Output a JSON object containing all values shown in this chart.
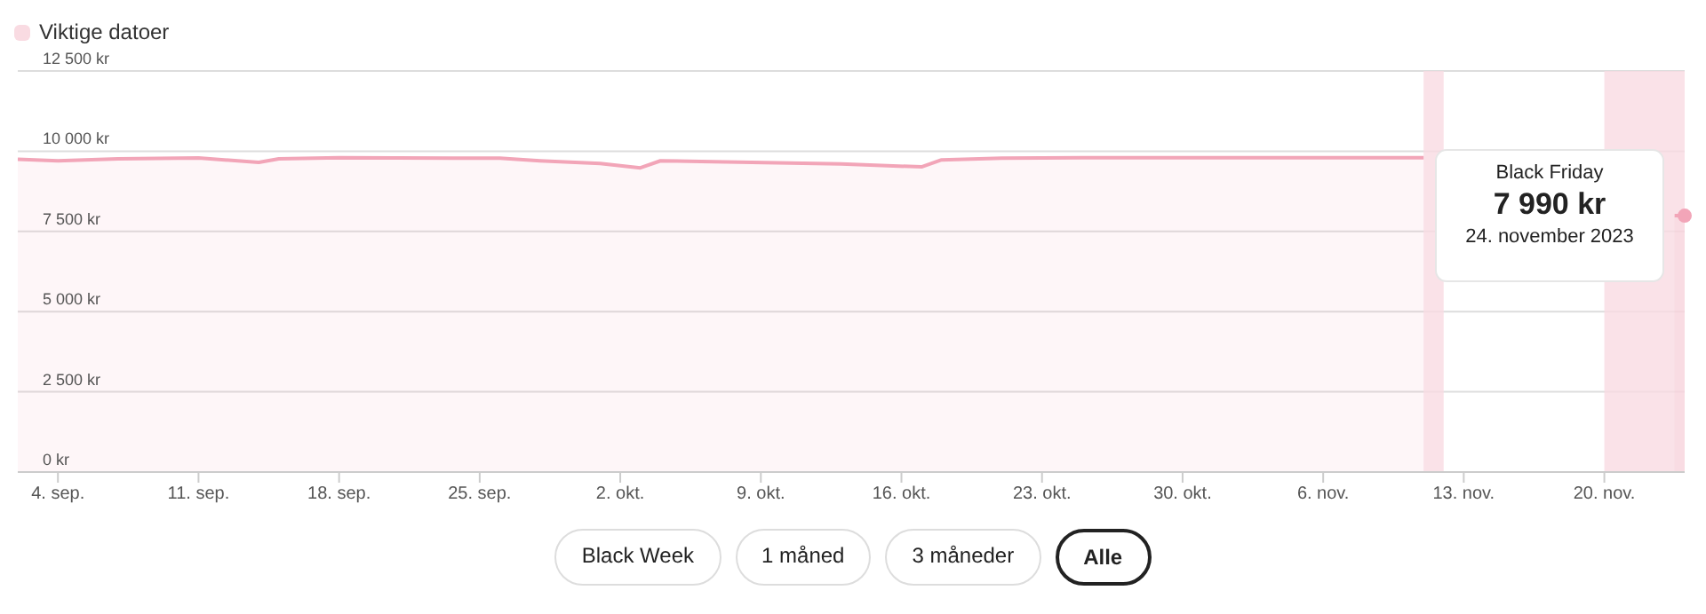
{
  "chart_data": {
    "type": "area",
    "legend_title": "Viktige datoer",
    "x": [
      "2023-09-02",
      "2023-09-04",
      "2023-09-07",
      "2023-09-11",
      "2023-09-14",
      "2023-09-15",
      "2023-09-18",
      "2023-09-26",
      "2023-09-28",
      "2023-10-01",
      "2023-10-03",
      "2023-10-04",
      "2023-10-06",
      "2023-10-13",
      "2023-10-17",
      "2023-10-18",
      "2023-10-21",
      "2023-10-25",
      "2023-11-01",
      "2023-11-11",
      "2023-11-12",
      "2023-11-16",
      "2023-11-20",
      "2023-11-23T12:00",
      "2023-11-24"
    ],
    "series": [
      {
        "color": "#f2a5b8",
        "values": [
          9750,
          9700,
          9760,
          9790,
          9650,
          9760,
          9800,
          9780,
          9700,
          9620,
          9480,
          9700,
          9680,
          9600,
          9510,
          9730,
          9780,
          9800,
          9800,
          9800,
          null,
          null,
          null,
          7990,
          7990
        ]
      }
    ],
    "xlim": [
      "2023-09-02",
      "2023-11-24"
    ],
    "xticks": [
      {
        "value": "2023-09-04",
        "label": "4. sep."
      },
      {
        "value": "2023-09-11",
        "label": "11. sep."
      },
      {
        "value": "2023-09-18",
        "label": "18. sep."
      },
      {
        "value": "2023-09-25",
        "label": "25. sep."
      },
      {
        "value": "2023-10-02",
        "label": "2. okt."
      },
      {
        "value": "2023-10-09",
        "label": "9. okt."
      },
      {
        "value": "2023-10-16",
        "label": "16. okt."
      },
      {
        "value": "2023-10-23",
        "label": "23. okt."
      },
      {
        "value": "2023-10-30",
        "label": "30. okt."
      },
      {
        "value": "2023-11-06",
        "label": "6. nov."
      },
      {
        "value": "2023-11-13",
        "label": "13. nov."
      },
      {
        "value": "2023-11-20",
        "label": "20. nov."
      }
    ],
    "ylim": [
      0,
      12500
    ],
    "yticks": [
      {
        "value": 0,
        "label": "0 kr"
      },
      {
        "value": 2500,
        "label": "2 500 kr"
      },
      {
        "value": 5000,
        "label": "5 000 kr"
      },
      {
        "value": 7500,
        "label": "7 500 kr"
      },
      {
        "value": 10000,
        "label": "10 000 kr"
      },
      {
        "value": 12500,
        "label": "12 500 kr"
      }
    ],
    "grid": "y",
    "marker": "none",
    "bands": [
      {
        "axis": "x",
        "from": "2023-11-11",
        "to": "2023-11-12",
        "color": "#f9dbe2"
      },
      {
        "axis": "x",
        "from": "2023-11-20",
        "to": "2023-11-24",
        "color": "#f9dbe2"
      }
    ],
    "annotations": [
      {
        "text": "Black Friday\n7 990 kr\n24. november 2023",
        "x": "2023-11-24",
        "y": 7990
      },
      "Black Week",
      "1 måned",
      "3 måneder",
      "Alle"
    ]
  }
}
